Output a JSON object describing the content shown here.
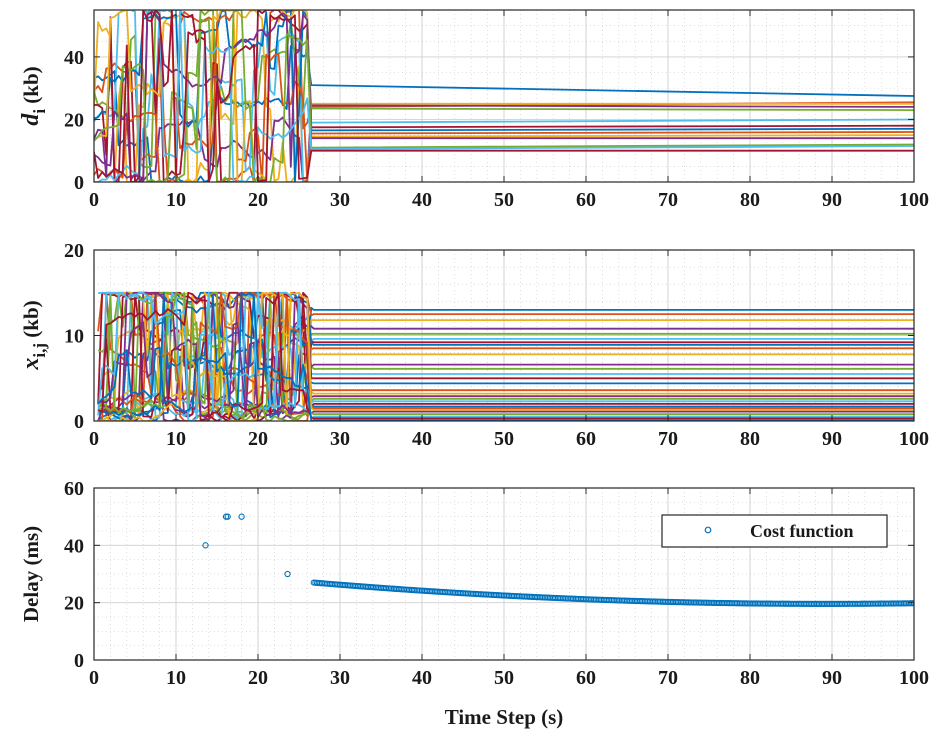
{
  "colors": {
    "series_palette": [
      "#0072BD",
      "#D95319",
      "#EDB120",
      "#7E2F8E",
      "#77AC30",
      "#4DBEEE",
      "#A2142F"
    ],
    "axis": "#262626",
    "grid_major": "#cfcfcf",
    "grid_minor": "#cfcfcf",
    "marker": "#0072BD"
  },
  "chart_data": [
    {
      "type": "line",
      "panel": "top",
      "ylabel_main": "d",
      "ylabel_sub": "i",
      "ylabel_unit": " (kb)",
      "xlim": [
        0,
        100
      ],
      "ylim": [
        0,
        55
      ],
      "xticks": [
        0,
        10,
        20,
        30,
        40,
        50,
        60,
        70,
        80,
        90,
        100
      ],
      "yticks": [
        0,
        20,
        40
      ],
      "grid": true,
      "minor_grid": true,
      "transient_end": 26.5,
      "series": [
        {
          "settled": [
            27.5,
            31.0
          ]
        },
        {
          "settled": [
            25.5,
            24.0
          ]
        },
        {
          "settled": [
            25.0,
            25.0
          ]
        },
        {
          "settled": [
            24.0,
            24.5
          ]
        },
        {
          "settled": [
            23.0,
            23.5
          ]
        },
        {
          "settled": [
            20.0,
            19.0
          ]
        },
        {
          "settled": [
            18.0,
            17.5
          ]
        },
        {
          "settled": [
            17.0,
            16.5
          ]
        },
        {
          "settled": [
            16.0,
            15.5
          ]
        },
        {
          "settled": [
            15.0,
            14.5
          ]
        },
        {
          "settled": [
            14.0,
            14.0
          ]
        },
        {
          "settled": [
            12.0,
            11.0
          ]
        },
        {
          "settled": [
            11.5,
            10.5
          ]
        },
        {
          "settled": [
            10.0,
            10.0
          ]
        }
      ]
    },
    {
      "type": "line",
      "panel": "middle",
      "ylabel_main": "x",
      "ylabel_sub": "i,j",
      "ylabel_unit": " (kb)",
      "xlim": [
        0,
        100
      ],
      "ylim": [
        0,
        20
      ],
      "xticks": [
        0,
        10,
        20,
        30,
        40,
        50,
        60,
        70,
        80,
        90,
        100
      ],
      "yticks": [
        0,
        10,
        20
      ],
      "grid": true,
      "minor_grid": true,
      "transient_end": 26.5,
      "saturation": 15,
      "settled_levels": [
        13.0,
        12.5,
        11.8,
        10.8,
        10.2,
        9.6,
        9.2,
        8.9,
        8.5,
        7.8,
        6.6,
        6.1,
        5.5,
        5.0,
        4.4,
        3.6,
        3.2,
        2.9,
        2.6,
        2.3,
        2.0,
        1.7,
        1.5,
        1.3,
        1.1,
        0.8,
        0.5,
        0.3,
        0.1
      ]
    },
    {
      "type": "scatter",
      "panel": "bottom",
      "xlabel": "Time Step (s)",
      "ylabel": "Delay (ms)",
      "xlim": [
        0,
        100
      ],
      "ylim": [
        0,
        60
      ],
      "xticks": [
        0,
        10,
        20,
        30,
        40,
        50,
        60,
        70,
        80,
        90,
        100
      ],
      "yticks": [
        0,
        20,
        40,
        60
      ],
      "grid": true,
      "minor_grid": true,
      "legend": {
        "position": "top-right",
        "entries": [
          "Cost function"
        ]
      },
      "series": [
        {
          "name": "Cost function",
          "early_points": [
            [
              13.6,
              40
            ],
            [
              16.1,
              50
            ],
            [
              16.3,
              50
            ],
            [
              18.0,
              50
            ],
            [
              23.6,
              30
            ]
          ],
          "trend": {
            "x_start": 26.8,
            "x_end": 100,
            "step": 0.2,
            "y_start": 27.0,
            "y_mid_x": 50,
            "y_mid": 22.5,
            "y_end": 19.8
          }
        }
      ]
    }
  ]
}
